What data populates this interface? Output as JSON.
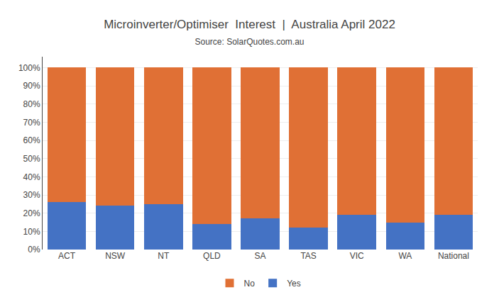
{
  "chart_data": {
    "type": "bar",
    "title": "Microinverter/Optimiser  Interest  |  Australia April 2022",
    "subtitle": "Source: SolarQuotes.com.au",
    "categories": [
      "ACT",
      "NSW",
      "NT",
      "QLD",
      "SA",
      "TAS",
      "VIC",
      "WA",
      "National"
    ],
    "series": [
      {
        "name": "Yes",
        "color": "#4472c4",
        "values": [
          26,
          24,
          25,
          14,
          17,
          12,
          19,
          15,
          19
        ]
      },
      {
        "name": "No",
        "color": "#e07035",
        "values": [
          74,
          76,
          75,
          86,
          83,
          88,
          81,
          85,
          81
        ]
      }
    ],
    "stacked": true,
    "ylim": [
      0,
      106
    ],
    "yticks": [
      {
        "value": 0,
        "label": "0%"
      },
      {
        "value": 10,
        "label": "10%"
      },
      {
        "value": 20,
        "label": "20%"
      },
      {
        "value": 30,
        "label": "30%"
      },
      {
        "value": 40,
        "label": "40%"
      },
      {
        "value": 50,
        "label": "50%"
      },
      {
        "value": 60,
        "label": "60%"
      },
      {
        "value": 70,
        "label": "70%"
      },
      {
        "value": 80,
        "label": "80%"
      },
      {
        "value": 90,
        "label": "90%"
      },
      {
        "value": 100,
        "label": "100%"
      }
    ],
    "grid": true,
    "legend": "bottom"
  }
}
